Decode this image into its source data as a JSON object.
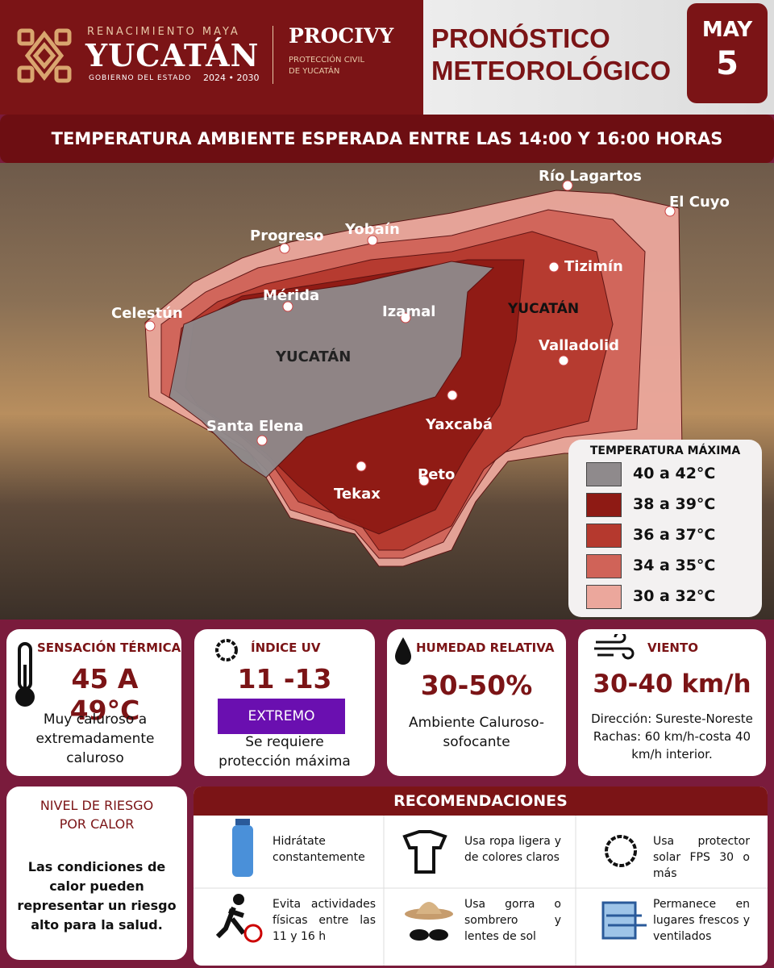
{
  "header": {
    "brand_top": "RENACIMIENTO MAYA",
    "brand": "YUCATÁN",
    "brand_sub": "GOBIERNO DEL ESTADO",
    "brand_years": "2024 • 2030",
    "agency": "PROCIVY",
    "agency_sub": "PROTECCIÓN CIVIL DE YUCATÁN",
    "title": "PRONÓSTICO METEOROLÓGICO",
    "month": "MAY",
    "day": "5"
  },
  "banner": "TEMPERATURA AMBIENTE ESPERADA ENTRE LAS 14:00 Y 16:00 HORAS",
  "map": {
    "places": [
      "Río Lagartos",
      "El Cuyo",
      "Progreso",
      "Yobaín",
      "Tizimín",
      "Mérida",
      "Izamal",
      "Celestún",
      "Valladolid",
      "Yaxcabá",
      "Santa Elena",
      "Tekax",
      "Peto"
    ],
    "watermark": "YUCATÁN"
  },
  "legend": {
    "title": "TEMPERATURA MÁXIMA",
    "items": [
      {
        "label": "40 a 42°C",
        "color": "#8f8a8c"
      },
      {
        "label": "38 a 39°C",
        "color": "#8e1a14"
      },
      {
        "label": "36 a 37°C",
        "color": "#b5392e"
      },
      {
        "label": "34 a 35°C",
        "color": "#d06358"
      },
      {
        "label": "30 a 32°C",
        "color": "#eba79c"
      }
    ]
  },
  "cards": [
    {
      "title": "SENSACIÓN TÉRMICA",
      "value": "45 A 49°C",
      "text": "Muy caluroso a extremadamente caluroso"
    },
    {
      "title": "ÍNDICE UV",
      "value": "11 -13",
      "badge": "EXTREMO",
      "text": "Se requiere protección máxima"
    },
    {
      "title": "HUMEDAD RELATIVA",
      "value": "30-50%",
      "text": "Ambiente Caluroso-sofocante"
    },
    {
      "title": "VIENTO",
      "value": "30-40 km/h",
      "text": "Dirección: Sureste-Noreste Rachas: 60 km/h-costa 40 km/h interior."
    }
  ],
  "risk": {
    "title": "NIVEL DE RIESGO POR CALOR",
    "text": "Las condiciones de calor pueden representar un riesgo alto para la salud."
  },
  "recommendations": {
    "title": "RECOMENDACIONES",
    "items": [
      "Hidrátate constantemente",
      "Usa ropa ligera y de colores claros",
      "Usa protector solar FPS 30 o más",
      "Evita actividades físicas entre las 11 y 16 h",
      "Usa gorra o sombrero y lentes de sol",
      "Permanece en lugares frescos y ventilados"
    ]
  }
}
